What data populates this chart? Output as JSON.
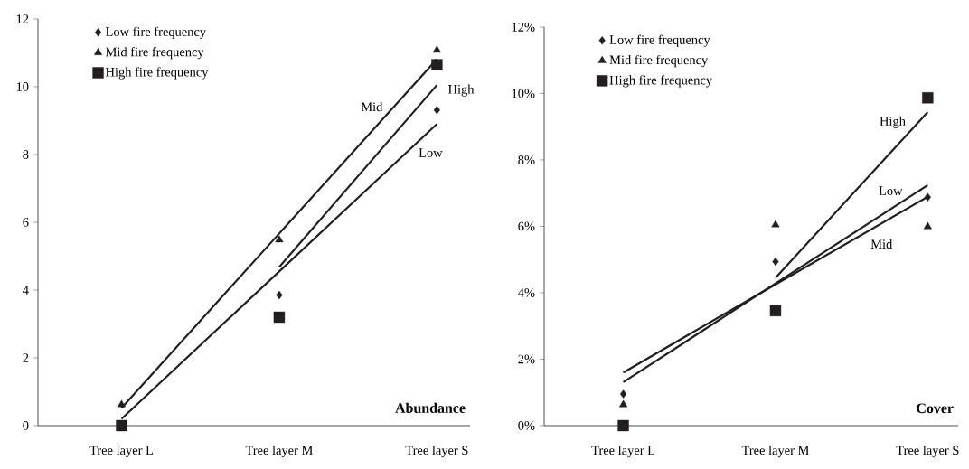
{
  "chart_data": [
    {
      "type": "scatter",
      "title": "Abundance",
      "categories": [
        "Tree layer L",
        "Tree layer M",
        "Tree layer S"
      ],
      "ylim": [
        0,
        12
      ],
      "yticks": [
        0,
        2,
        4,
        6,
        8,
        10,
        12
      ],
      "legend": "top left",
      "grid": false,
      "series": [
        {
          "name": "Low fire frequency",
          "color": "#231f20",
          "marker": "diamond",
          "values": [
            null,
            3.85,
            9.31
          ]
        },
        {
          "name": "Mid fire frequency",
          "color": "#231f20",
          "marker": "triangle",
          "values": [
            0.62,
            5.48,
            11.08
          ]
        },
        {
          "name": "High fire frequency",
          "color": "#231f20",
          "marker": "square",
          "values": [
            0,
            3.2,
            10.65
          ]
        },
        {
          "name": "Low",
          "type": "line",
          "color": "#231f20",
          "line_style": "solid",
          "values": [
            0.2,
            4.55,
            8.9
          ]
        },
        {
          "name": "Mid",
          "type": "line",
          "color": "#231f20",
          "line_style": "solid",
          "values": [
            0.52,
            5.67,
            10.81
          ]
        },
        {
          "name": "High",
          "type": "line",
          "color": "#231f20",
          "line_style": "solid",
          "values": [
            null,
            4.68,
            10.05
          ]
        }
      ]
    },
    {
      "type": "scatter",
      "title": "Cover",
      "categories": [
        "Tree layer L",
        "Tree layer M",
        "Tree layer S"
      ],
      "ylim": [
        0,
        12
      ],
      "yticks": [
        {
          "value": 0,
          "label": "0%"
        },
        {
          "value": 2,
          "label": "2%"
        },
        {
          "value": 4,
          "label": "4%"
        },
        {
          "value": 6,
          "label": "6%"
        },
        {
          "value": 8,
          "label": "8%"
        },
        {
          "value": 10,
          "label": "10%"
        },
        {
          "value": 12,
          "label": "12%"
        }
      ],
      "legend": "top left",
      "grid": false,
      "series": [
        {
          "name": "Low fire frequency",
          "color": "#231f20",
          "marker": "diamond",
          "values": [
            0.95,
            4.94,
            6.88
          ]
        },
        {
          "name": "Mid fire frequency",
          "color": "#231f20",
          "marker": "triangle",
          "values": [
            0.63,
            6.05,
            5.99
          ]
        },
        {
          "name": "High fire frequency",
          "color": "#231f20",
          "marker": "square",
          "values": [
            0,
            3.46,
            9.87
          ]
        },
        {
          "name": "Low",
          "type": "line",
          "color": "#231f20",
          "line_style": "solid",
          "values": [
            1.31,
            4.28,
            7.24
          ]
        },
        {
          "name": "Mid",
          "type": "line",
          "color": "#231f20",
          "line_style": "solid",
          "values": [
            1.6,
            4.25,
            6.89
          ]
        },
        {
          "name": "High",
          "type": "line",
          "color": "#231f20",
          "line_style": "solid",
          "values": [
            null,
            4.45,
            9.44
          ]
        }
      ]
    }
  ]
}
